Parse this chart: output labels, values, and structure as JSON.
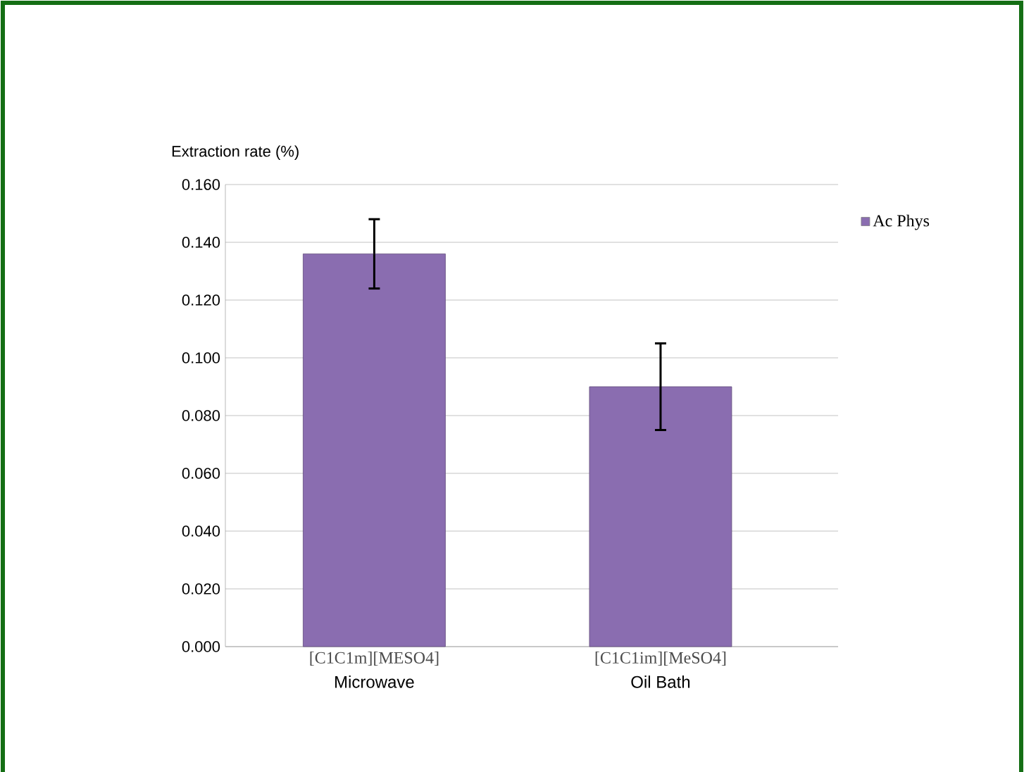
{
  "chart_data": {
    "type": "bar",
    "ylabel": "Extraction rate (%)",
    "categories": [
      "[C1C1m][MESO4]",
      "[C1C1im][MeSO4]"
    ],
    "series": [
      {
        "name": "Ac Phys",
        "color": "#8a6db0",
        "values": [
          0.136,
          0.09
        ],
        "errors": [
          0.012,
          0.015
        ]
      }
    ],
    "ylim": [
      0,
      0.16
    ],
    "yticks": [
      {
        "value": 0,
        "label": "0.000"
      },
      {
        "value": 0.02,
        "label": "0.020"
      },
      {
        "value": 0.04,
        "label": "0.040"
      },
      {
        "value": 0.06,
        "label": "0.060"
      },
      {
        "value": 0.08,
        "label": "0.080"
      },
      {
        "value": 0.1,
        "label": "0.100"
      },
      {
        "value": 0.12,
        "label": "0.120"
      },
      {
        "value": 0.14,
        "label": "0.140"
      },
      {
        "value": 0.16,
        "label": "0.160"
      }
    ],
    "annotations": [
      "Microwave",
      "Oil Bath"
    ],
    "grid": "y",
    "legend": "right"
  }
}
